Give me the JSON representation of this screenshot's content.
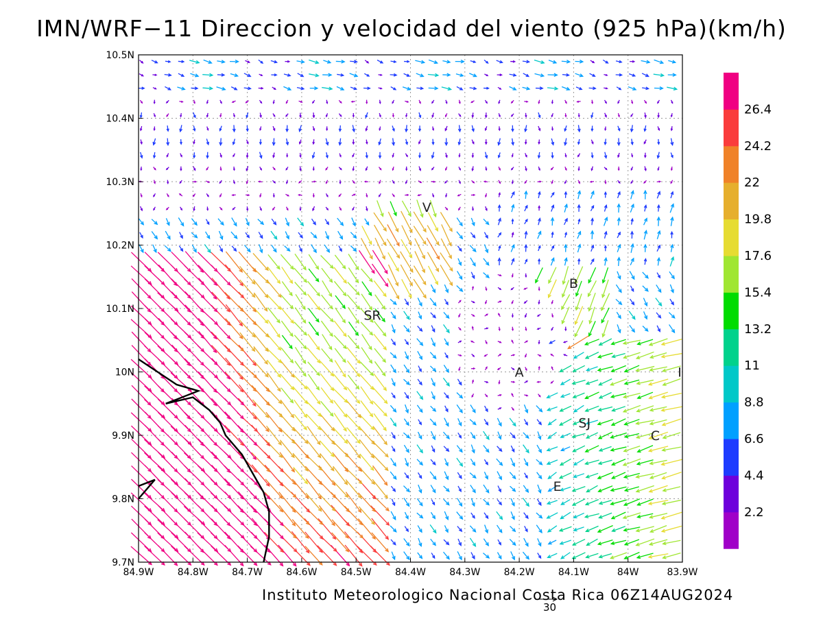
{
  "title": "IMN/WRF−11 Direccion y velocidad del viento (925 hPa)(km/h)",
  "credit": "Instituto Meteorologico Nacional Costa Rica 06Z14AUG2024",
  "scale_reference": {
    "value": "30"
  },
  "map": {
    "lon_range": [
      -84.9,
      -83.9
    ],
    "lat_range": [
      9.7,
      10.5
    ],
    "lon_ticks": [
      {
        "value": -84.9,
        "label": "84.9W"
      },
      {
        "value": -84.8,
        "label": "84.8W"
      },
      {
        "value": -84.7,
        "label": "84.7W"
      },
      {
        "value": -84.6,
        "label": "84.6W"
      },
      {
        "value": -84.5,
        "label": "84.5W"
      },
      {
        "value": -84.4,
        "label": "84.4W"
      },
      {
        "value": -84.3,
        "label": "84.3W"
      },
      {
        "value": -84.2,
        "label": "84.2W"
      },
      {
        "value": -84.1,
        "label": "84.1W"
      },
      {
        "value": -84.0,
        "label": "84W"
      },
      {
        "value": -83.9,
        "label": "83.9W"
      }
    ],
    "lat_ticks": [
      {
        "value": 9.7,
        "label": "9.7N"
      },
      {
        "value": 9.8,
        "label": "9.8N"
      },
      {
        "value": 9.9,
        "label": "9.9N"
      },
      {
        "value": 10.0,
        "label": "10N"
      },
      {
        "value": 10.1,
        "label": "10.1N"
      },
      {
        "value": 10.2,
        "label": "10.2N"
      },
      {
        "value": 10.3,
        "label": "10.3N"
      },
      {
        "value": 10.4,
        "label": "10.4N"
      },
      {
        "value": 10.5,
        "label": "10.5N"
      }
    ],
    "grid": "dotted",
    "cities": [
      {
        "label": "V",
        "lon": -84.37,
        "lat": 10.26
      },
      {
        "label": "SR",
        "lon": -84.47,
        "lat": 10.09
      },
      {
        "label": "B",
        "lon": -84.1,
        "lat": 10.14
      },
      {
        "label": "A",
        "lon": -84.2,
        "lat": 10.0
      },
      {
        "label": "I",
        "lon": -83.905,
        "lat": 10.0
      },
      {
        "label": "SJ",
        "lon": -84.08,
        "lat": 9.92
      },
      {
        "label": "C",
        "lon": -83.95,
        "lat": 9.9
      },
      {
        "label": "E",
        "lon": -84.13,
        "lat": 9.82
      }
    ],
    "coastline": [
      {
        "lon": -84.9,
        "lat": 10.02
      },
      {
        "lon": -84.83,
        "lat": 9.98
      },
      {
        "lon": -84.79,
        "lat": 9.97
      },
      {
        "lon": -84.85,
        "lat": 9.95
      },
      {
        "lon": -84.8,
        "lat": 9.96
      },
      {
        "lon": -84.77,
        "lat": 9.94
      },
      {
        "lon": -84.75,
        "lat": 9.92
      },
      {
        "lon": -84.74,
        "lat": 9.9
      },
      {
        "lon": -84.71,
        "lat": 9.87
      },
      {
        "lon": -84.69,
        "lat": 9.84
      },
      {
        "lon": -84.67,
        "lat": 9.81
      },
      {
        "lon": -84.66,
        "lat": 9.78
      },
      {
        "lon": -84.66,
        "lat": 9.74
      },
      {
        "lon": -84.67,
        "lat": 9.7
      }
    ],
    "coastline_islet": [
      {
        "lon": -84.9,
        "lat": 9.8
      },
      {
        "lon": -84.87,
        "lat": 9.83
      },
      {
        "lon": -84.9,
        "lat": 9.82
      }
    ]
  },
  "legend": {
    "colors": [
      "#a000c8",
      "#6e00dc",
      "#1e3cff",
      "#00a0ff",
      "#00c8c8",
      "#00d28c",
      "#00dc00",
      "#a0e632",
      "#e6dc32",
      "#e6af2d",
      "#f08228",
      "#fa3c3c",
      "#f00082"
    ],
    "labels": [
      "2.2",
      "4.4",
      "6.6",
      "8.8",
      "11",
      "13.2",
      "15.4",
      "17.6",
      "19.8",
      "22",
      "24.2",
      "26.4"
    ],
    "thresholds": [
      2.2,
      4.4,
      6.6,
      8.8,
      11,
      13.2,
      15.4,
      17.6,
      19.8,
      22,
      24.2,
      26.4
    ]
  },
  "wind_field": {
    "grid_lon_count": 41,
    "grid_lat_count": 38,
    "unit": "km/h",
    "scale_vector_kmh": 30
  }
}
